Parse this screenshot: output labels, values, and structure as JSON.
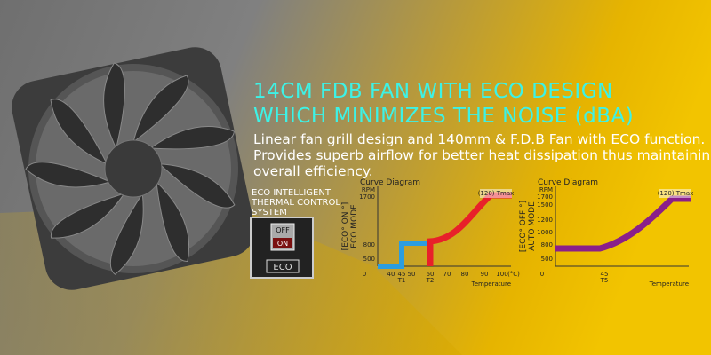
{
  "headline": {
    "lines": [
      "14CM FDB FAN WITH ECO DESIGN",
      "WHICH MINIMIZES THE NOISE (dBA)"
    ]
  },
  "description": {
    "lines": [
      "Linear fan grill design and 140mm & F.D.B Fan with ECO function.",
      "Provides superb airflow for better heat dissipation thus maintaining",
      "overall efficiency."
    ]
  },
  "eco_label": {
    "lines": [
      "ECO INTELLIGENT",
      "THERMAL CONTROL",
      "SYSTEM"
    ]
  },
  "switch": {
    "off": "OFF",
    "on": "ON",
    "badge": "ECO"
  },
  "diagrams": [
    {
      "title": "Curve Diagram",
      "mode": "[ECO° ON °]",
      "mode_name": "ECO MODE",
      "y_unit": "RPM",
      "y_ticks": [
        "1700",
        "800",
        "500"
      ],
      "x_ticks": [
        "0",
        "40",
        "45",
        "50",
        "60",
        "70",
        "80",
        "90",
        "100"
      ],
      "x_unit": "(°C)",
      "x_notes": [
        "T1",
        "T2"
      ],
      "x_title": "Temperature",
      "tmax": "(120) Tmax"
    },
    {
      "title": "Curve Diagram",
      "mode": "[ECO° OFF °]",
      "mode_name": "AUTO MODE",
      "y_unit": "RPM",
      "y_ticks": [
        "1700",
        "1500",
        "1200",
        "1000",
        "800",
        "500"
      ],
      "x_ticks": [
        "0",
        "45"
      ],
      "x_unit": null,
      "x_notes": [
        "T5"
      ],
      "x_title": "Temperature",
      "tmax": "(120) Tmax"
    }
  ]
}
